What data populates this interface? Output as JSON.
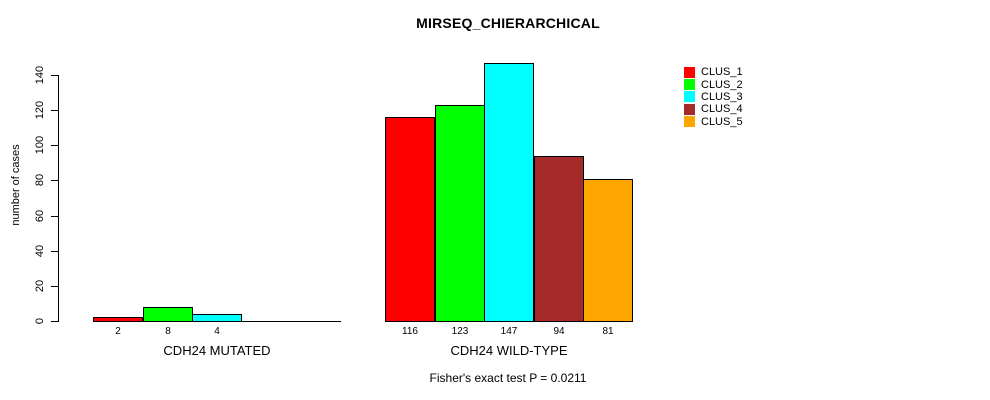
{
  "chart_data": {
    "type": "bar",
    "title": "MIRSEQ_CHIERARCHICAL",
    "ylabel": "number of cases",
    "xlabel": "",
    "ylim": [
      0,
      140
    ],
    "yticks": [
      0,
      20,
      40,
      60,
      80,
      100,
      120,
      140
    ],
    "grid": false,
    "legend_position": "top-right",
    "categories": [
      "CDH24 MUTATED",
      "CDH24 WILD-TYPE"
    ],
    "series": [
      {
        "name": "CLUS_1",
        "color": "#ff0000",
        "values": [
          2,
          116
        ]
      },
      {
        "name": "CLUS_2",
        "color": "#00ff00",
        "values": [
          8,
          123
        ]
      },
      {
        "name": "CLUS_3",
        "color": "#00ffff",
        "values": [
          4,
          147
        ]
      },
      {
        "name": "CLUS_4",
        "color": "#a52a2a",
        "values": [
          0,
          94
        ]
      },
      {
        "name": "CLUS_5",
        "color": "#ffa500",
        "values": [
          0,
          81
        ]
      }
    ],
    "bar_value_labels": {
      "CDH24 MUTATED": [
        "2",
        "8",
        "4",
        "",
        ""
      ],
      "CDH24 WILD-TYPE": [
        "116",
        "123",
        "147",
        "94",
        "81"
      ]
    },
    "annotation": "Fisher's exact test P = 0.0211"
  }
}
